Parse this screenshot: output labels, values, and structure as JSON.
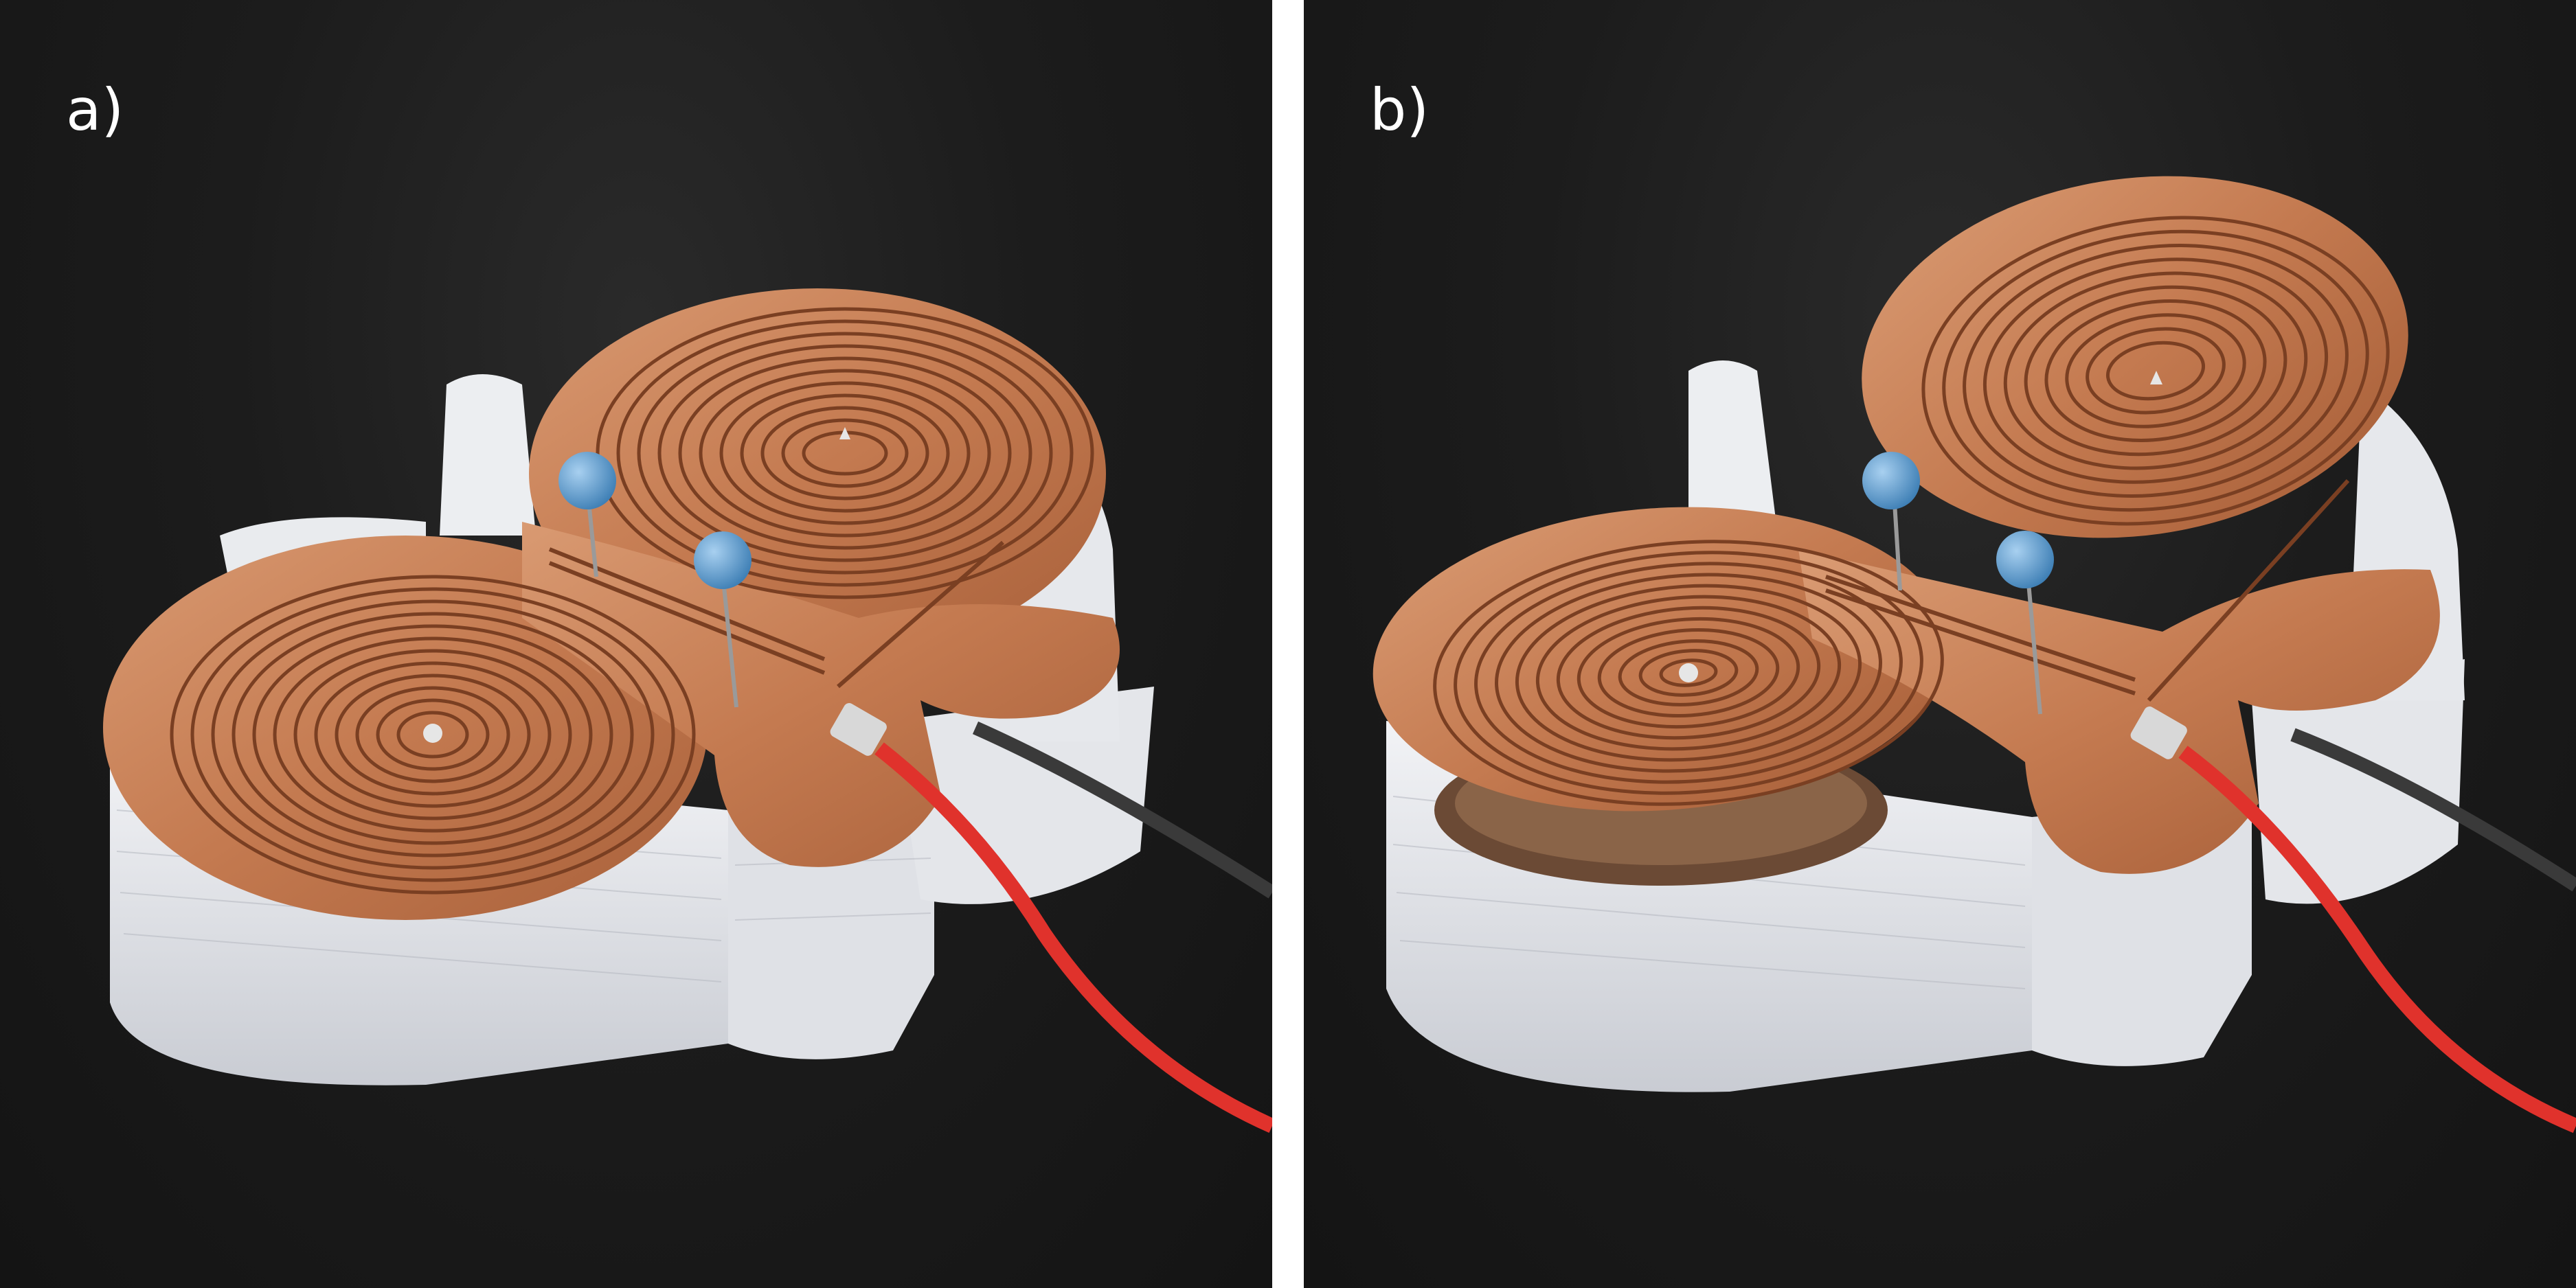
{
  "panels": [
    {
      "label": "a)"
    },
    {
      "label": "b)"
    }
  ],
  "colors": {
    "background": "#1c1c1c",
    "separator": "#ffffff",
    "copper": "#c9825a",
    "copper_dark": "#7a3f22",
    "base_white": "#e8eaee",
    "pin_head": "#5fa3d6",
    "wire_red": "#e0322c",
    "wire_black": "#3a3a3a"
  },
  "icons": [
    "spiral-coil-icon",
    "pin-icon",
    "wire-icon"
  ]
}
